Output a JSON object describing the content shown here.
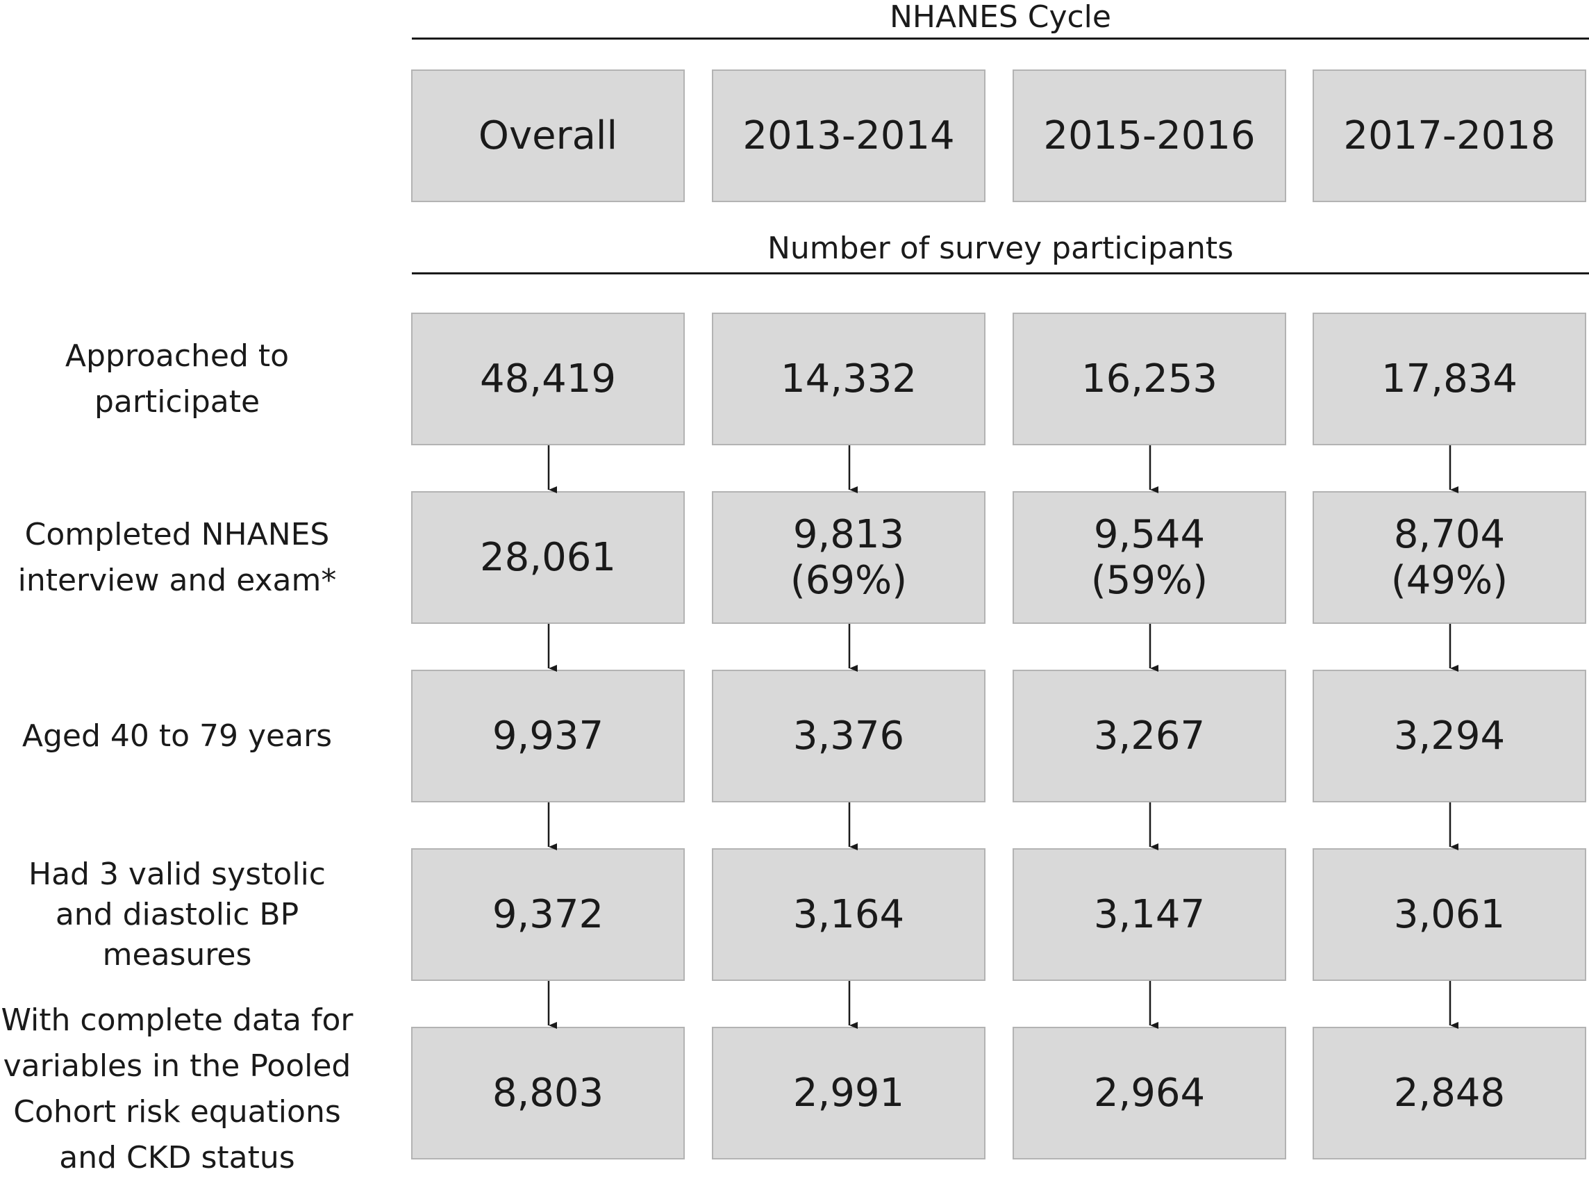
{
  "header": {
    "cycle_title": "NHANES Cycle",
    "participants_title": "Number of survey participants"
  },
  "columns": [
    "Overall",
    "2013-2014",
    "2015-2016",
    "2017-2018"
  ],
  "rows": [
    {
      "label": "Approached to participate",
      "values": [
        "48,419",
        "14,332",
        "16,253",
        "17,834"
      ],
      "percents": [
        "",
        "",
        "",
        ""
      ]
    },
    {
      "label": "Completed NHANES interview and exam*",
      "values": [
        "28,061",
        "9,813",
        "9,544",
        "8,704"
      ],
      "percents": [
        "",
        "(69%)",
        "(59%)",
        "(49%)"
      ]
    },
    {
      "label": "Aged 40 to 79 years",
      "values": [
        "9,937",
        "3,376",
        "3,267",
        "3,294"
      ],
      "percents": [
        "",
        "",
        "",
        ""
      ]
    },
    {
      "label": "Had 3 valid systolic and diastolic BP measures",
      "values": [
        "9,372",
        "3,164",
        "3,147",
        "3,061"
      ],
      "percents": [
        "",
        "",
        "",
        ""
      ]
    },
    {
      "label": "With complete data for variables in the Pooled Cohort risk equations and CKD status",
      "values": [
        "8,803",
        "2,991",
        "2,964",
        "2,848"
      ],
      "percents": [
        "",
        "",
        "",
        ""
      ]
    }
  ]
}
